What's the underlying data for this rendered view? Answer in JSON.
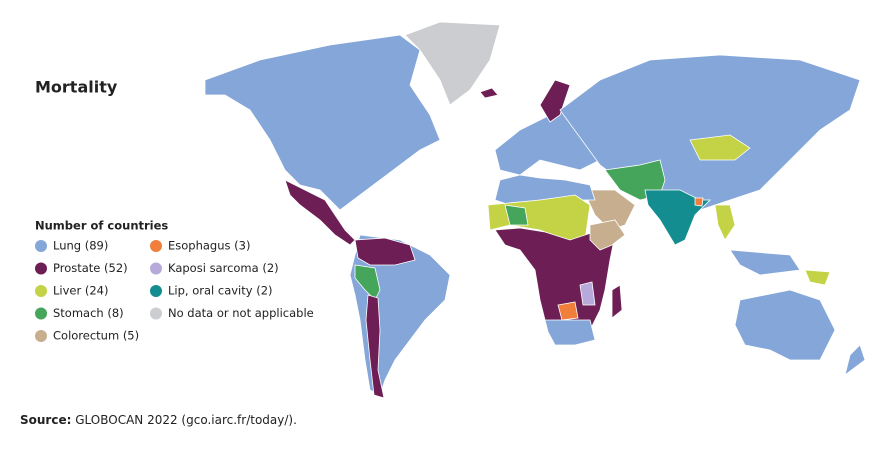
{
  "title": "Mortality",
  "legend": {
    "title": "Number of countries",
    "items": [
      {
        "label": "Lung (89)",
        "color": "#84a6d8"
      },
      {
        "label": "Prostate (52)",
        "color": "#6d1f55"
      },
      {
        "label": "Liver (24)",
        "color": "#c3d345"
      },
      {
        "label": "Stomach (8)",
        "color": "#45a55a"
      },
      {
        "label": "Colorectum (5)",
        "color": "#c6ae8e"
      },
      {
        "label": "Esophagus (3)",
        "color": "#f07f3c"
      },
      {
        "label": "Kaposi sarcoma (2)",
        "color": "#b7a9d9"
      },
      {
        "label": "Lip, oral cavity (2)",
        "color": "#138d90"
      },
      {
        "label": "No data or not applicable",
        "color": "#cbcdd0"
      }
    ]
  },
  "source": {
    "label": "Source:",
    "text": "GLOBOCAN 2022 (gco.iarc.fr/today/)."
  }
}
